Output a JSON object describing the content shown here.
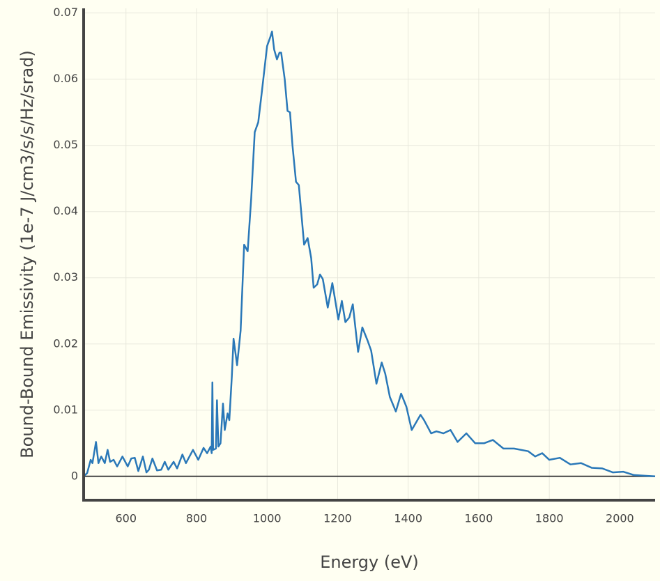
{
  "chart_data": {
    "type": "line",
    "xlabel": "Energy (eV)",
    "ylabel": "Bound-Bound Emissivity (1e-7 J/cm3/s/s/Hz/srad)",
    "xlim": [
      480,
      2100
    ],
    "ylim": [
      -0.0036,
      0.0707
    ],
    "xticks": [
      600,
      800,
      1000,
      1200,
      1400,
      1600,
      1800,
      2000
    ],
    "yticks": [
      0,
      0.01,
      0.02,
      0.03,
      0.04,
      0.05,
      0.06,
      0.07
    ],
    "grid": true,
    "x": [
      480,
      490,
      500,
      505,
      515,
      522,
      530,
      540,
      548,
      555,
      565,
      575,
      590,
      605,
      615,
      625,
      635,
      648,
      658,
      665,
      675,
      688,
      700,
      710,
      720,
      735,
      745,
      760,
      770,
      790,
      805,
      820,
      830,
      840,
      843,
      845,
      847,
      855,
      858,
      862,
      868,
      875,
      880,
      888,
      893,
      900,
      905,
      915,
      925,
      935,
      945,
      955,
      965,
      975,
      985,
      1000,
      1010,
      1014,
      1020,
      1028,
      1035,
      1040,
      1050,
      1058,
      1065,
      1072,
      1082,
      1090,
      1100,
      1105,
      1115,
      1125,
      1132,
      1142,
      1150,
      1158,
      1172,
      1185,
      1195,
      1202,
      1212,
      1222,
      1233,
      1243,
      1258,
      1270,
      1285,
      1295,
      1310,
      1325,
      1335,
      1348,
      1365,
      1380,
      1395,
      1410,
      1435,
      1445,
      1465,
      1480,
      1500,
      1520,
      1540,
      1565,
      1590,
      1615,
      1640,
      1670,
      1700,
      1740,
      1760,
      1780,
      1800,
      1830,
      1860,
      1890,
      1920,
      1950,
      1980,
      2010,
      2040,
      2070,
      2100
    ],
    "series": [
      {
        "color": "#2a78b8",
        "values": [
          0,
          0.0005,
          0.0025,
          0.002,
          0.0052,
          0.002,
          0.003,
          0.002,
          0.004,
          0.0022,
          0.0025,
          0.0015,
          0.003,
          0.0015,
          0.0027,
          0.0028,
          0.0008,
          0.003,
          0.0006,
          0.001,
          0.0027,
          0.0009,
          0.001,
          0.0022,
          0.001,
          0.0022,
          0.0012,
          0.0033,
          0.002,
          0.004,
          0.0025,
          0.0043,
          0.0035,
          0.0045,
          0.0035,
          0.0142,
          0.004,
          0.0042,
          0.0115,
          0.0045,
          0.005,
          0.011,
          0.007,
          0.0095,
          0.0085,
          0.015,
          0.0208,
          0.0168,
          0.022,
          0.035,
          0.034,
          0.042,
          0.052,
          0.0535,
          0.058,
          0.065,
          0.0665,
          0.0672,
          0.0645,
          0.063,
          0.064,
          0.064,
          0.06,
          0.0552,
          0.055,
          0.05,
          0.0445,
          0.044,
          0.038,
          0.035,
          0.036,
          0.033,
          0.0285,
          0.029,
          0.0305,
          0.0298,
          0.0255,
          0.0292,
          0.026,
          0.0237,
          0.0265,
          0.0233,
          0.024,
          0.026,
          0.0188,
          0.0225,
          0.0205,
          0.019,
          0.014,
          0.0172,
          0.0155,
          0.012,
          0.0098,
          0.0125,
          0.0105,
          0.007,
          0.0093,
          0.0085,
          0.0065,
          0.0068,
          0.0065,
          0.007,
          0.0052,
          0.0065,
          0.005,
          0.005,
          0.0055,
          0.0042,
          0.0042,
          0.0038,
          0.003,
          0.0035,
          0.0025,
          0.0028,
          0.0018,
          0.002,
          0.0013,
          0.0012,
          0.0006,
          0.0007,
          0.0002,
          0.0001,
          0
        ]
      }
    ]
  }
}
